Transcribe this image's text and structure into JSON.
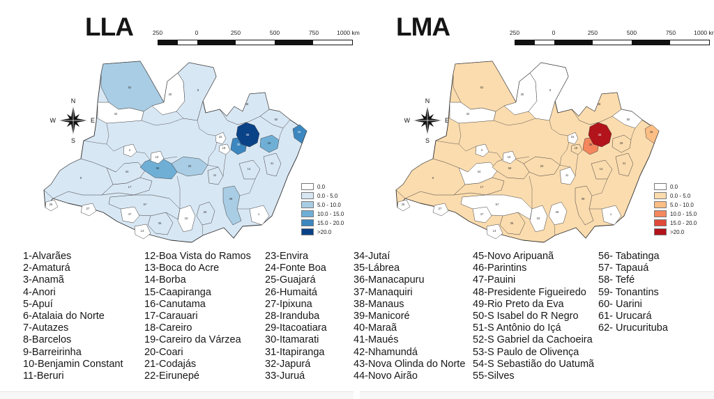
{
  "maps": [
    {
      "id": "lla",
      "title": "LLA",
      "palette": [
        "#ffffff",
        "#d8e7f4",
        "#a9cde4",
        "#6fafd6",
        "#3c87c0",
        "#0a4287"
      ],
      "legend_labels": [
        "0.0",
        "0.0 - 5.0",
        "5.0 - 10.0",
        "10.0 - 15.0",
        "15.0 - 20.0",
        ">20.0"
      ],
      "scalebar_labels": [
        "250",
        "0",
        "250",
        "500",
        "750",
        "1000 km"
      ],
      "compass": {
        "n": "N",
        "e": "E",
        "s": "S",
        "w": "W"
      }
    },
    {
      "id": "lma",
      "title": "LMA",
      "palette": [
        "#ffffff",
        "#fbdcae",
        "#fdbe85",
        "#f4875e",
        "#e04b39",
        "#b3131a"
      ],
      "legend_labels": [
        "0.0",
        "0.0 - 5.0",
        "5.0 - 10.0",
        "10.0 - 15.0",
        "15.0 - 20.0",
        ">20.0"
      ],
      "scalebar_labels": [
        "250",
        "0",
        "250",
        "500",
        "750",
        "1000 km"
      ],
      "compass": {
        "n": "N",
        "e": "E",
        "s": "S",
        "w": "W"
      }
    }
  ],
  "regions": [
    {
      "num": "52",
      "lla": 2,
      "lma": 1
    },
    {
      "num": "30",
      "lla": 0,
      "lma": 0
    },
    {
      "num": "9",
      "lla": 1,
      "lma": 0
    },
    {
      "num": "32",
      "lla": 0,
      "lma": 0
    },
    {
      "num": "48",
      "lla": 1,
      "lma": 1
    },
    {
      "num": "50",
      "lla": 1,
      "lma": 0
    },
    {
      "num": "6",
      "lla": 1,
      "lma": 1
    },
    {
      "num": "34",
      "lla": 1,
      "lma": 0
    },
    {
      "num": "17",
      "lla": 1,
      "lma": 1
    },
    {
      "num": "57",
      "lla": 1,
      "lma": 0
    },
    {
      "num": "58",
      "lla": 3,
      "lma": 1
    },
    {
      "num": "20",
      "lla": 2,
      "lma": 1
    },
    {
      "num": "39",
      "lla": 2,
      "lma": 1
    },
    {
      "num": "2",
      "lla": 0,
      "lma": 0
    },
    {
      "num": "10",
      "lla": 0,
      "lma": 0
    },
    {
      "num": "11",
      "lla": 1,
      "lma": 0
    },
    {
      "num": "14",
      "lla": 1,
      "lma": 1
    },
    {
      "num": "41",
      "lla": 1,
      "lma": 1
    },
    {
      "num": "16",
      "lla": 0,
      "lma": 0
    },
    {
      "num": "26",
      "lla": 1,
      "lma": 0
    },
    {
      "num": "1",
      "lla": 0,
      "lma": 0
    },
    {
      "num": "35",
      "lla": 1,
      "lma": 1
    },
    {
      "num": "47",
      "lla": 0,
      "lma": 0
    },
    {
      "num": "13",
      "lla": 0,
      "lma": 0
    },
    {
      "num": "25",
      "lla": 0,
      "lma": 0
    },
    {
      "num": "27",
      "lla": 0,
      "lma": 0
    },
    {
      "num": "36",
      "lla": 4,
      "lma": 3
    },
    {
      "num": "29",
      "lla": 3,
      "lma": 1
    },
    {
      "num": "46",
      "lla": 4,
      "lma": 2
    },
    {
      "num": "15",
      "lla": 0,
      "lma": 0
    },
    {
      "num": "18",
      "lla": 0,
      "lma": 1
    },
    {
      "num": "38",
      "lla": 5,
      "lma": 5
    }
  ],
  "municipalities": {
    "columns": [
      [
        "1-Alvarães",
        "2-Amaturá",
        "3-Anamã",
        "4-Anori",
        "5-Apuí",
        "6-Atalaia do Norte",
        "7-Autazes",
        "8-Barcelos",
        "9-Barreirinha",
        "10-Benjamin Constant",
        "11-Beruri"
      ],
      [
        "12-Boa Vista do Ramos",
        "13-Boca do Acre",
        "14-Borba",
        "15-Caapiranga",
        "16-Canutama",
        "17-Carauari",
        "18-Careiro",
        "19-Careiro da Várzea",
        "20-Coari",
        "21-Codajás",
        "22-Eirunepé"
      ],
      [
        "23-Envira",
        "24-Fonte Boa",
        "25-Guajará",
        "26-Humaitá",
        "27-Ipixuna",
        "28-Iranduba",
        "29-Itacoatiara",
        "30-Itamarati",
        "31-Itapiranga",
        "32-Japurá",
        "33-Juruá"
      ],
      [
        "34-Jutaí",
        "35-Lábrea",
        "36-Manacapuru",
        "37-Manaquiri",
        "38-Manaus",
        "39-Manicoré",
        "40-Maraã",
        "41-Maués",
        "42-Nhamundá",
        "43-Nova Olinda do Norte",
        "44-Novo Airão"
      ],
      [
        "45-Novo Aripuanã",
        "46-Parintins",
        "47-Pauini",
        "48-Presidente Figueiredo",
        "49-Rio Preto da Eva",
        "50-S Isabel do R Negro",
        "51-S Antônio do Içá",
        "52-S Gabriel da Cachoeira",
        "53-S Paulo de Olivença",
        "54-S Sebastião do Uatumã",
        "55-Silves"
      ],
      [
        "56- Tabatinga",
        "57- Tapauá",
        "58- Tefé",
        "59- Tonantins",
        "60- Uarini",
        "61- Urucará",
        "62- Urucurituba"
      ]
    ]
  }
}
